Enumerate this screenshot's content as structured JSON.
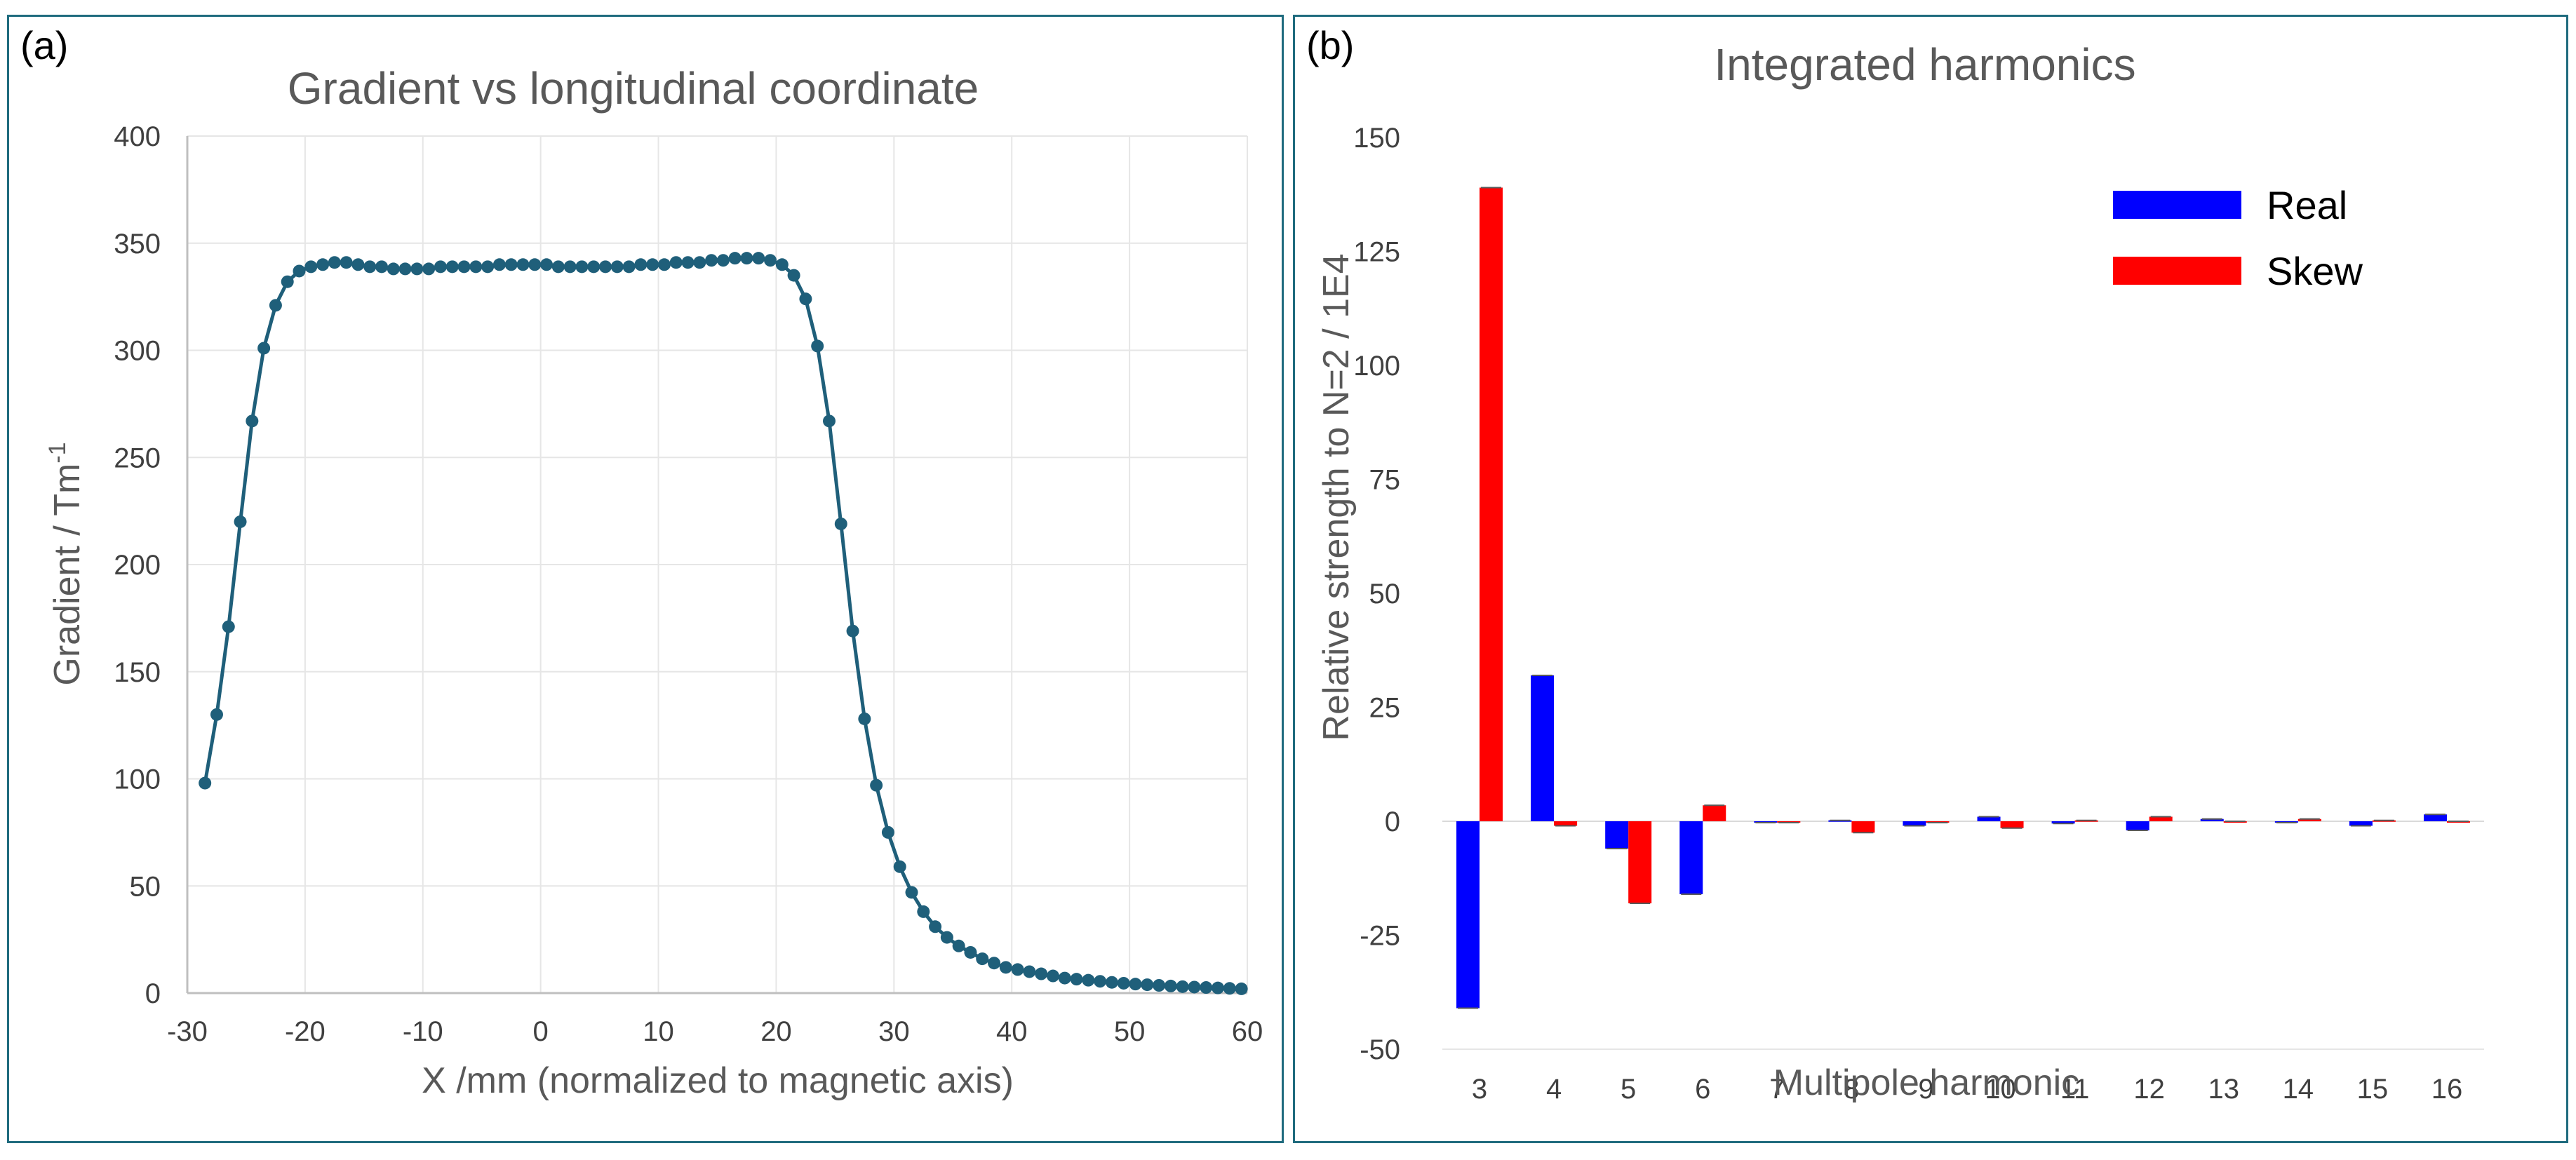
{
  "panels": {
    "a": {
      "label": "(a)"
    },
    "b": {
      "label": "(b)"
    }
  },
  "chart_data": [
    {
      "type": "line",
      "title": "Gradient vs longitudinal coordinate",
      "xlabel": "X /mm (normalized to magnetic axis)",
      "ylabel_main": "Gradient / Tm",
      "ylabel_superscript": "-1",
      "xlim": [
        -30,
        60
      ],
      "ylim": [
        0,
        400
      ],
      "xticks": [
        "-30",
        "-20",
        "-10",
        "0",
        "10",
        "20",
        "30",
        "40",
        "50",
        "60"
      ],
      "yticks": [
        "0",
        "50",
        "100",
        "150",
        "200",
        "250",
        "300",
        "350",
        "400"
      ],
      "grid": true,
      "color": "#1f5f7a",
      "series": [
        {
          "name": "Gradient",
          "x": [
            -28.5,
            -27.5,
            -26.5,
            -25.5,
            -24.5,
            -23.5,
            -22.5,
            -21.5,
            -20.5,
            -19.5,
            -18.5,
            -17.5,
            -16.5,
            -15.5,
            -14.5,
            -13.5,
            -12.5,
            -11.5,
            -10.5,
            -9.5,
            -8.5,
            -7.5,
            -6.5,
            -5.5,
            -4.5,
            -3.5,
            -2.5,
            -1.5,
            -0.5,
            0.5,
            1.5,
            2.5,
            3.5,
            4.5,
            5.5,
            6.5,
            7.5,
            8.5,
            9.5,
            10.5,
            11.5,
            12.5,
            13.5,
            14.5,
            15.5,
            16.5,
            17.5,
            18.5,
            19.5,
            20.5,
            21.5,
            22.5,
            23.5,
            24.5,
            25.5,
            26.5,
            27.5,
            28.5,
            29.5,
            30.5,
            31.5,
            32.5,
            33.5,
            34.5,
            35.5,
            36.5,
            37.5,
            38.5,
            39.5,
            40.5,
            41.5,
            42.5,
            43.5,
            44.5,
            45.5,
            46.5,
            47.5,
            48.5,
            49.5,
            50.5,
            51.5,
            52.5,
            53.5,
            54.5,
            55.5,
            56.5,
            57.5,
            58.5,
            59.5
          ],
          "y": [
            98,
            130,
            171,
            220,
            267,
            301,
            321,
            332,
            337,
            339,
            340,
            341,
            341,
            340,
            339,
            339,
            338,
            338,
            338,
            338,
            339,
            339,
            339,
            339,
            339,
            340,
            340,
            340,
            340,
            340,
            339,
            339,
            339,
            339,
            339,
            339,
            339,
            340,
            340,
            340,
            341,
            341,
            341,
            342,
            342,
            343,
            343,
            343,
            342,
            340,
            335,
            324,
            302,
            267,
            219,
            169,
            128,
            97,
            75,
            59,
            47,
            38,
            31,
            26,
            22,
            19,
            16,
            14,
            12,
            11,
            10,
            9,
            8,
            7,
            6.5,
            6,
            5.5,
            5,
            4.6,
            4.2,
            3.9,
            3.6,
            3.3,
            3,
            2.8,
            2.6,
            2.4,
            2.2,
            2
          ]
        }
      ]
    },
    {
      "type": "bar",
      "title": "Integrated harmonics",
      "xlabel": "Multipole harmonic",
      "ylabel": "Relative strength to N=2 / 1E4",
      "ylim": [
        -50,
        150
      ],
      "yticks": [
        "-50",
        "-25",
        "0",
        "25",
        "50",
        "75",
        "100",
        "125",
        "150"
      ],
      "categories": [
        "3",
        "4",
        "5",
        "6",
        "7",
        "8",
        "9",
        "10",
        "11",
        "12",
        "13",
        "14",
        "15",
        "16"
      ],
      "legend_position": "top-right",
      "series": [
        {
          "name": "Real",
          "color": "#0000ff",
          "values": [
            -41,
            32,
            -6,
            -16,
            -0.3,
            0.2,
            -1,
            1,
            -0.5,
            -2,
            0.5,
            -0.3,
            -1,
            1.5
          ]
        },
        {
          "name": "Skew",
          "color": "#ff0000",
          "values": [
            139,
            -1,
            -18,
            3.5,
            -0.3,
            -2.5,
            -0.3,
            -1.5,
            0.2,
            1,
            0,
            0.5,
            0.2,
            0
          ]
        }
      ]
    }
  ]
}
